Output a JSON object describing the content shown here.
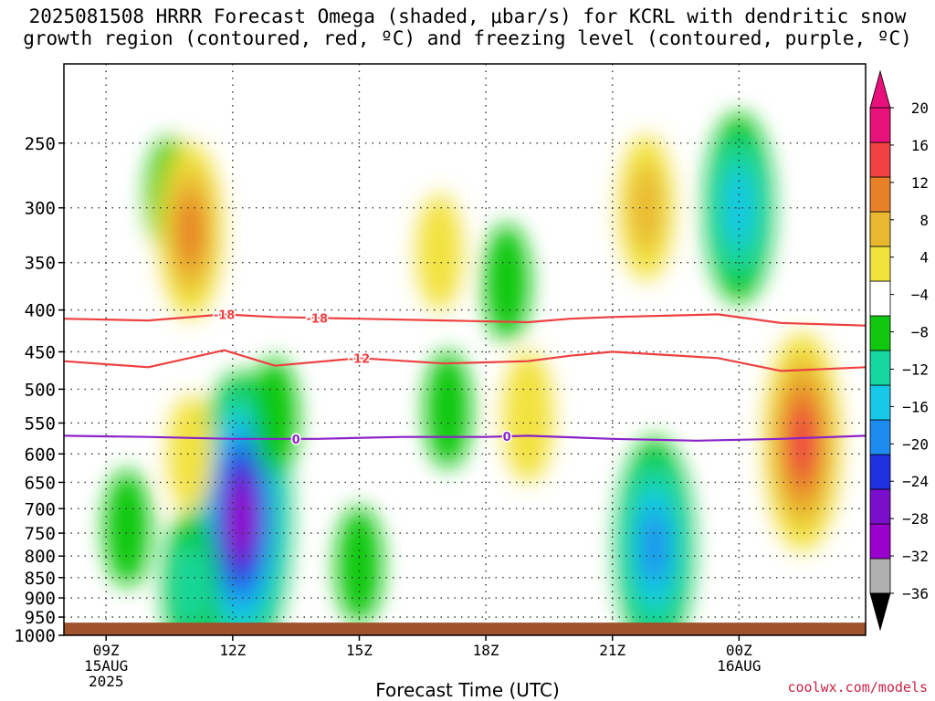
{
  "title": "2025081508 HRRR Forecast Omega (shaded, μbar/s) for KCRL with dendritic snow\ngrowth region (contoured, red, ºC) and freezing level (contoured, purple, ºC)",
  "credit": "coolwx.com/models",
  "chart_data": {
    "type": "heatmap",
    "xlabel": "Forecast Time (UTC)",
    "ylabel": "",
    "x_ticks": [
      {
        "hour": 0,
        "lines": [
          "09Z",
          "15AUG",
          "2025"
        ]
      },
      {
        "hour": 3,
        "lines": [
          "12Z"
        ]
      },
      {
        "hour": 6,
        "lines": [
          "15Z"
        ]
      },
      {
        "hour": 9,
        "lines": [
          "18Z"
        ]
      },
      {
        "hour": 12,
        "lines": [
          "21Z"
        ]
      },
      {
        "hour": 15,
        "lines": [
          "00Z",
          "16AUG"
        ]
      }
    ],
    "xlim": [
      "2025-08-15T08:00Z",
      "2025-08-16T03:00Z"
    ],
    "y_ticks": [
      250,
      300,
      350,
      400,
      450,
      500,
      550,
      600,
      650,
      700,
      750,
      800,
      850,
      900,
      950,
      1000
    ],
    "ylim_hPa": [
      200,
      1000
    ],
    "y_scale": "log",
    "surface_pressure_hPa": 965,
    "grid": true,
    "colorbar": {
      "levels": [
        -36,
        -32,
        -28,
        -24,
        -20,
        -16,
        -12,
        -8,
        -4,
        4,
        8,
        12,
        16,
        20
      ],
      "labels": [
        "20",
        "16",
        "12",
        "8",
        "4",
        "−4",
        "−8",
        "−12",
        "−16",
        "−20",
        "−24",
        "−28",
        "−32",
        "−36"
      ],
      "colors": [
        "#b0b0b0",
        "#9a00cc",
        "#7a0ecc",
        "#2030e0",
        "#1c8cf0",
        "#18c8e8",
        "#14d8a0",
        "#10c810",
        "#ffffff",
        "#f2e23c",
        "#e8b830",
        "#e88028",
        "#f04040",
        "#e8107a"
      ]
    },
    "omega_features": [
      {
        "hour": 0.5,
        "p": 740,
        "value": -6
      },
      {
        "hour": 1.5,
        "p": 290,
        "value": -6
      },
      {
        "hour": 3.2,
        "p": 720,
        "value": -30
      },
      {
        "hour": 2.0,
        "p": 870,
        "value": -10
      },
      {
        "hour": 2.0,
        "p": 320,
        "value": 14
      },
      {
        "hour": 2.0,
        "p": 600,
        "value": 6
      },
      {
        "hour": 3.5,
        "p": 420,
        "value": 4
      },
      {
        "hour": 4.0,
        "p": 540,
        "value": -6
      },
      {
        "hour": 6.0,
        "p": 820,
        "value": -6
      },
      {
        "hour": 7.9,
        "p": 340,
        "value": 6
      },
      {
        "hour": 8.1,
        "p": 530,
        "value": -6
      },
      {
        "hour": 9.5,
        "p": 370,
        "value": -6
      },
      {
        "hour": 10.0,
        "p": 540,
        "value": 8
      },
      {
        "hour": 12.8,
        "p": 300,
        "value": 10
      },
      {
        "hour": 13.0,
        "p": 780,
        "value": -20
      },
      {
        "hour": 15.0,
        "p": 300,
        "value": -16
      },
      {
        "hour": 16.5,
        "p": 580,
        "value": 20
      }
    ],
    "series": [
      {
        "name": "-18",
        "x": [
          -1,
          1,
          2.8,
          4,
          6,
          8,
          10,
          11,
          12,
          14.5,
          16,
          18
        ],
        "y": [
          410,
          412,
          405,
          408,
          410,
          412,
          414,
          410,
          408,
          405,
          415,
          418
        ]
      },
      {
        "name": "-12",
        "x": [
          -1,
          1,
          2.8,
          4,
          6,
          8,
          10,
          11,
          12,
          14.5,
          16,
          18
        ],
        "y": [
          462,
          470,
          448,
          468,
          458,
          465,
          462,
          455,
          450,
          458,
          475,
          470
        ]
      },
      {
        "name": "0",
        "x": [
          -1,
          1,
          3,
          5,
          7,
          9,
          10,
          12,
          14,
          16,
          18
        ],
        "y": [
          570,
          572,
          575,
          575,
          572,
          572,
          570,
          575,
          578,
          575,
          570
        ]
      }
    ]
  }
}
